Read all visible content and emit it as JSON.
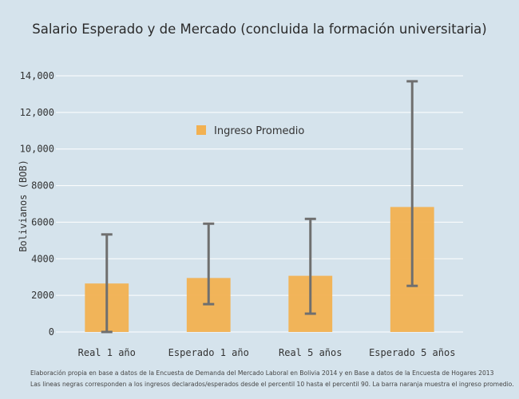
{
  "chart_data": {
    "type": "bar",
    "title": "Salario Esperado y de Mercado (concluida la formación universitaria)",
    "xlabel": "",
    "ylabel": "Bolivianos (BOB)",
    "ylim": [
      0,
      14500
    ],
    "yticks": [
      0,
      2000,
      4000,
      6000,
      8000,
      10000,
      12000,
      14000
    ],
    "ytick_labels": [
      "0",
      "2000",
      "4000",
      "6000",
      "8000",
      "10,000",
      "12,000",
      "14,000"
    ],
    "grid": true,
    "legend_position": "top-center",
    "categories": [
      "Real 1 año",
      "Esperado 1 año",
      "Real 5 años",
      "Esperado 5 años"
    ],
    "series": [
      {
        "name": "Ingreso Promedio",
        "values": [
          2650,
          2950,
          3070,
          6830
        ],
        "error_low": [
          0,
          1520,
          1000,
          2520
        ],
        "error_high": [
          5330,
          5920,
          6180,
          13700
        ]
      }
    ],
    "colors": {
      "bar": "#f2b151",
      "error": "#6f6f6f",
      "background": "#d5e3ec",
      "grid": "#ffffff"
    }
  },
  "notes": [
    "Elaboración propia en base a datos de la Encuesta de Demanda del Mercado Laboral en Bolivia 2014 y en Base a datos de la Encuesta de Hogares 2013",
    "Las lineas negras corresponden a los ingresos declarados/esperados desde el percentil 10 hasta el percentil 90. La barra naranja muestra el ingreso promedio."
  ]
}
